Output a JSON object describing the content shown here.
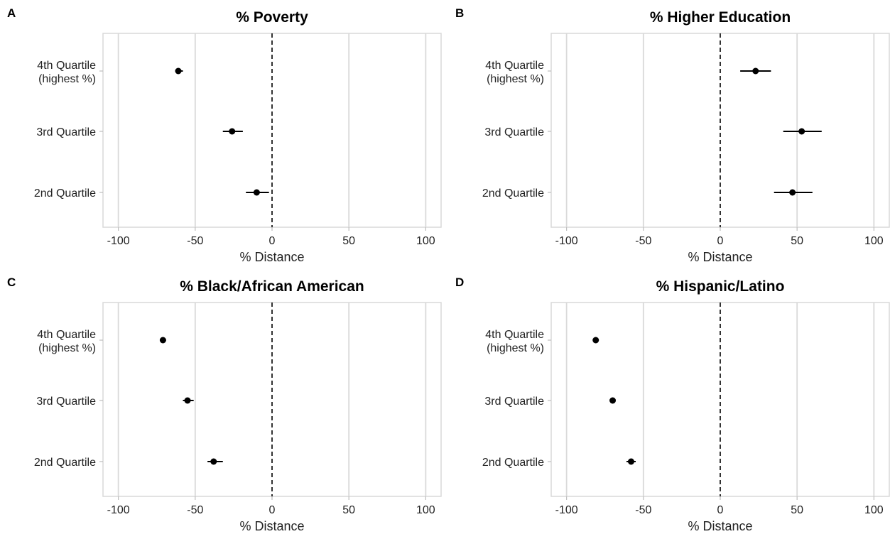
{
  "chart_data": [
    {
      "type": "scatter",
      "panel_label": "A",
      "title": "% Poverty",
      "xlabel": "% Distance",
      "ylabel": "",
      "xlim": [
        -110,
        110
      ],
      "x_ticks": [
        -100,
        -50,
        0,
        50,
        100
      ],
      "x_tick_labels": [
        "-100",
        "-50",
        "0",
        "50",
        "100"
      ],
      "categories": [
        "4th Quartile\n(highest %)",
        "3rd Quartile",
        "2nd Quartile"
      ],
      "values": [
        -61,
        -26,
        -10
      ],
      "ci_low": [
        -63,
        -32,
        -17
      ],
      "ci_high": [
        -58,
        -19,
        -2
      ],
      "reference_line": 0,
      "grid": true
    },
    {
      "type": "scatter",
      "panel_label": "B",
      "title": "% Higher Education",
      "xlabel": "% Distance",
      "ylabel": "",
      "xlim": [
        -110,
        110
      ],
      "x_ticks": [
        -100,
        -50,
        0,
        50,
        100
      ],
      "x_tick_labels": [
        "-100",
        "-50",
        "0",
        "50",
        "100"
      ],
      "categories": [
        "4th Quartile\n(highest %)",
        "3rd Quartile",
        "2nd Quartile"
      ],
      "values": [
        23,
        53,
        47
      ],
      "ci_low": [
        13,
        41,
        35
      ],
      "ci_high": [
        33,
        66,
        60
      ],
      "reference_line": 0,
      "grid": true
    },
    {
      "type": "scatter",
      "panel_label": "C",
      "title": "% Black/African American",
      "xlabel": "% Distance",
      "ylabel": "",
      "xlim": [
        -110,
        110
      ],
      "x_ticks": [
        -100,
        -50,
        0,
        50,
        100
      ],
      "x_tick_labels": [
        "-100",
        "-50",
        "0",
        "50",
        "100"
      ],
      "categories": [
        "4th Quartile\n(highest %)",
        "3rd Quartile",
        "2nd Quartile"
      ],
      "values": [
        -71,
        -55,
        -38
      ],
      "ci_low": [
        -72,
        -58,
        -42
      ],
      "ci_high": [
        -69,
        -51,
        -32
      ],
      "reference_line": 0,
      "grid": true
    },
    {
      "type": "scatter",
      "panel_label": "D",
      "title": "% Hispanic/Latino",
      "xlabel": "% Distance",
      "ylabel": "",
      "xlim": [
        -110,
        110
      ],
      "x_ticks": [
        -100,
        -50,
        0,
        50,
        100
      ],
      "x_tick_labels": [
        "-100",
        "-50",
        "0",
        "50",
        "100"
      ],
      "categories": [
        "4th Quartile\n(highest %)",
        "3rd Quartile",
        "2nd Quartile"
      ],
      "values": [
        -81,
        -70,
        -58
      ],
      "ci_low": [
        -82,
        -71,
        -61
      ],
      "ci_high": [
        -80,
        -69,
        -55
      ],
      "reference_line": 0,
      "grid": true
    }
  ]
}
